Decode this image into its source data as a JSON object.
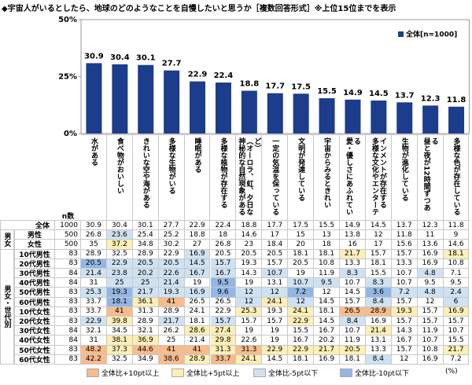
{
  "title": "◆宇宙人がいるとしたら、地球のどのようなことを自慢したいと思うか［複数回答形式］※上位15位までを表示",
  "chart_data": {
    "type": "bar",
    "legend": "全体[n=1000]",
    "color": "#1c3c8c",
    "categories": [
      "水がある",
      "食べ物がおいしい",
      "きれいな空や海がある",
      "多様な生物がいる",
      "睡眠がある",
      "多様な植物が存在する",
      "神秘的な自然現象がある（オーロラ、虹、夕日など）",
      "一定の気温を保っている",
      "文明が発達している",
      "宇宙からみるときれい",
      "愛・優しさにあふれている",
      "多様な文化やエンターテインメントが存在する",
      "生物が進化している",
      "昼と夜が12時間ずつある",
      "多様な色が存在している"
    ],
    "values": [
      30.9,
      30.4,
      30.1,
      27.7,
      22.9,
      22.4,
      18.8,
      17.7,
      17.5,
      15.5,
      14.9,
      14.5,
      13.7,
      12.3,
      11.8
    ],
    "ylim": [
      0,
      50
    ],
    "yticks": [
      {
        "value": 0,
        "label": "0%"
      },
      {
        "value": 25,
        "label": "25%"
      },
      {
        "value": 50,
        "label": "50%"
      }
    ]
  },
  "table": {
    "n_header": "n数",
    "unit": "(%)",
    "overall": {
      "label": "全体",
      "n": 1000,
      "values": [
        30.9,
        30.4,
        30.1,
        27.7,
        22.9,
        22.4,
        18.8,
        17.7,
        17.5,
        15.5,
        14.9,
        14.5,
        13.7,
        12.3,
        11.8
      ]
    },
    "groups": [
      {
        "label": "男女",
        "rows": [
          {
            "label": "男性",
            "n": 500,
            "values": [
              26.8,
              23.6,
              25.4,
              25.2,
              18.8,
              18.0,
              14.6,
              17.0,
              15.0,
              13.0,
              13.8,
              12.0,
              11.8,
              11.0,
              9.0
            ]
          },
          {
            "label": "女性",
            "n": 500,
            "values": [
              35.0,
              37.2,
              34.8,
              30.2,
              27.0,
              26.8,
              23.0,
              18.4,
              20.0,
              18.0,
              16.0,
              17.0,
              15.6,
              13.6,
              14.6
            ]
          }
        ]
      },
      {
        "label": "男女・世代別",
        "rows": [
          {
            "label": "10代男性",
            "n": 83,
            "values": [
              28.9,
              32.5,
              28.9,
              22.9,
              16.9,
              20.5,
              20.5,
              20.5,
              18.1,
              18.1,
              21.7,
              15.7,
              15.7,
              16.9,
              18.1
            ]
          },
          {
            "label": "20代男性",
            "n": 83,
            "values": [
              20.5,
              22.9,
              20.5,
              20.5,
              14.5,
              15.7,
              19.3,
              15.7,
              20.5,
              10.8,
              13.3,
              18.1,
              13.3,
              16.9,
              10.8
            ]
          },
          {
            "label": "30代男性",
            "n": 84,
            "values": [
              21.4,
              23.8,
              20.2,
              22.6,
              16.7,
              16.7,
              14.3,
              10.7,
              19.0,
              11.9,
              8.3,
              15.5,
              10.7,
              4.8,
              7.1
            ]
          },
          {
            "label": "40代男性",
            "n": 84,
            "values": [
              31.0,
              25.0,
              25.0,
              21.4,
              19.0,
              9.5,
              19.0,
              13.1,
              10.7,
              9.5,
              10.7,
              8.3,
              10.7,
              9.5,
              9.5
            ]
          },
          {
            "label": "50代男性",
            "n": 83,
            "values": [
              25.3,
              19.3,
              21.7,
              19.3,
              16.9,
              9.6,
              12.0,
              12.0,
              7.2,
              12.0,
              14.5,
              3.6,
              7.2,
              4.8,
              2.4
            ]
          },
          {
            "label": "60代男性",
            "n": 83,
            "values": [
              33.7,
              18.1,
              36.1,
              41.0,
              26.5,
              26.5,
              12.0,
              24.1,
              12.0,
              14.5,
              15.7,
              8.4,
              15.7,
              12.0,
              6.0
            ]
          },
          {
            "label": "10代女性",
            "n": 83,
            "values": [
              33.7,
              41.0,
              31.3,
              28.9,
              24.1,
              22.9,
              25.3,
              19.3,
              24.1,
              18.1,
              26.5,
              28.9,
              19.3,
              15.7,
              16.9
            ]
          },
          {
            "label": "20代女性",
            "n": 83,
            "values": [
              22.9,
              39.8,
              28.9,
              21.7,
              18.1,
              15.7,
              15.7,
              15.7,
              22.9,
              14.5,
              8.4,
              16.9,
              15.7,
              15.7,
              15.7
            ]
          },
          {
            "label": "30代女性",
            "n": 84,
            "values": [
              32.1,
              34.5,
              32.1,
              26.2,
              28.6,
              27.4,
              19.0,
              19.0,
              15.5,
              16.7,
              10.7,
              21.4,
              14.3,
              11.9,
              10.7
            ]
          },
          {
            "label": "40代女性",
            "n": 84,
            "values": [
              31.0,
              38.1,
              36.9,
              25.0,
              21.4,
              29.8,
              22.6,
              19.0,
              16.7,
              20.2,
              11.9,
              13.1,
              16.7,
              10.7,
              15.5
            ]
          },
          {
            "label": "50代女性",
            "n": 83,
            "values": [
              48.2,
              37.3,
              44.6,
              41.0,
              41.0,
              31.3,
              31.3,
              22.9,
              22.9,
              21.7,
              20.5,
              13.3,
              15.7,
              10.8,
              21.7
            ]
          },
          {
            "label": "60代女性",
            "n": 83,
            "values": [
              42.2,
              32.5,
              34.9,
              38.6,
              28.9,
              33.7,
              24.1,
              14.5,
              18.1,
              16.9,
              18.1,
              8.4,
              12.0,
              16.9,
              7.2
            ]
          }
        ]
      }
    ]
  },
  "highlight_legend": [
    {
      "label": "全体比+10pt以上",
      "threshold": 10,
      "color": "#f7bb8c"
    },
    {
      "label": "全体比+5pt以上",
      "threshold": 5,
      "color": "#fdefb6"
    },
    {
      "label": "全体比-5pt以下",
      "threshold": -5,
      "color": "#cfe2f3"
    },
    {
      "label": "全体比-10pt以下",
      "threshold": -10,
      "color": "#93b7e4"
    }
  ]
}
